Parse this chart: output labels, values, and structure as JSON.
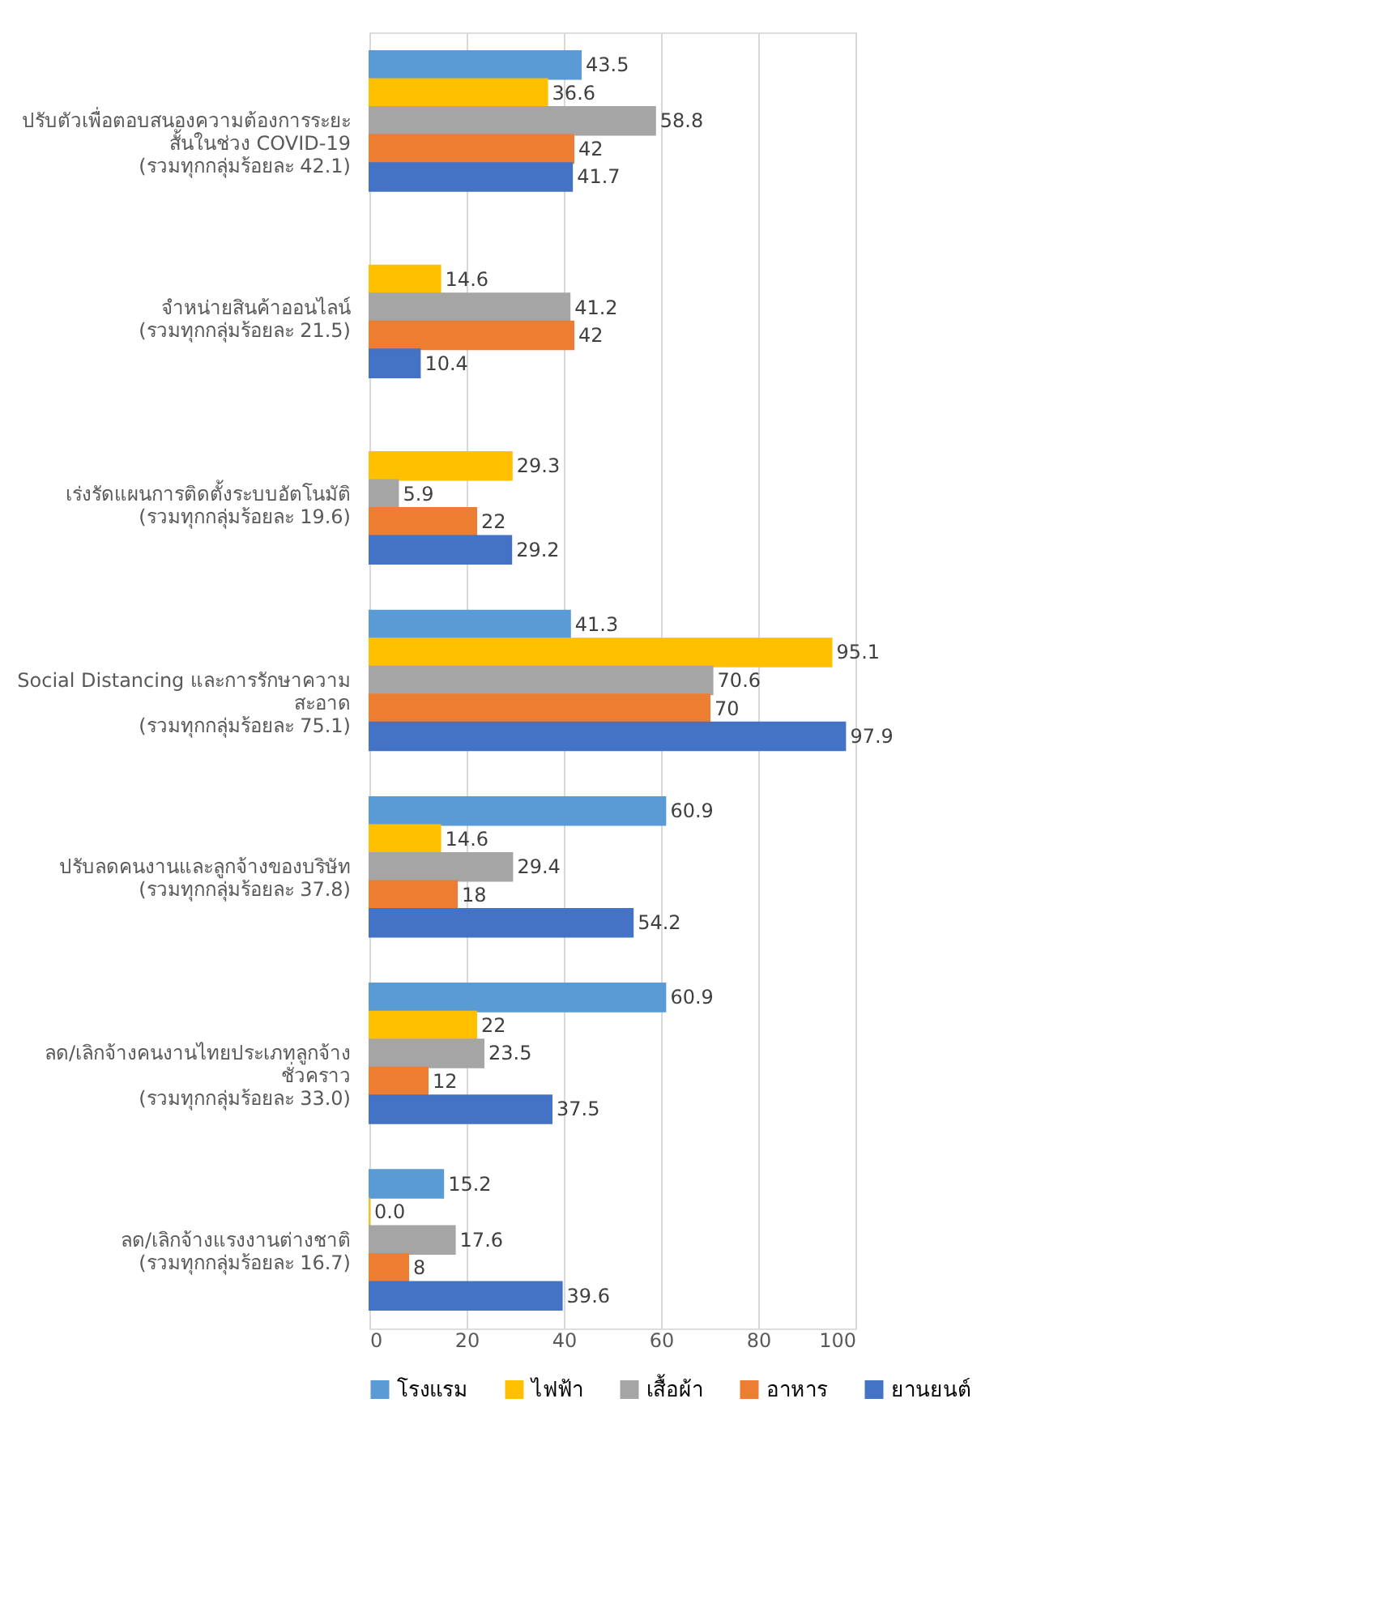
{
  "chart_data": {
    "type": "bar",
    "orientation": "horizontal",
    "categories": [
      "ปรับตัวเพื่อตอบสนองความต้องการระยะ\nสั้นในช่วง COVID-19\n(รวมทุกกลุ่มร้อยละ 42.1)",
      "จำหน่ายสินค้าออนไลน์\n(รวมทุกกลุ่มร้อยละ 21.5)",
      "เร่งรัดแผนการติดตั้งระบบอัตโนมัติ\n(รวมทุกกลุ่มร้อยละ 19.6)",
      "Social Distancing และการรักษาความ\nสะอาด\n(รวมทุกกลุ่มร้อยละ 75.1)",
      "ปรับลดคนงานและลูกจ้างของบริษัท\n(รวมทุกกลุ่มร้อยละ 37.8)",
      "ลด/เลิกจ้างคนงานไทยประเภทลูกจ้าง\nชั่วคราว\n(รวมทุกกลุ่มร้อยละ 33.0)",
      "ลด/เลิกจ้างแรงงานต่างชาติ\n(รวมทุกกลุ่มร้อยละ 16.7)"
    ],
    "series": [
      {
        "name": "โรงแรม",
        "color": "#5b9bd5",
        "values": [
          43.5,
          null,
          null,
          41.3,
          60.9,
          60.9,
          15.2
        ],
        "value_labels": [
          "43.5",
          null,
          null,
          "41.3",
          "60.9",
          "60.9",
          "15.2"
        ]
      },
      {
        "name": "ไฟฟ้า",
        "color": "#ffc000",
        "values": [
          36.6,
          14.6,
          29.3,
          95.1,
          14.6,
          22,
          0.0
        ],
        "value_labels": [
          "36.6",
          "14.6",
          "29.3",
          "95.1",
          "14.6",
          "22",
          "0.0"
        ]
      },
      {
        "name": "เสื้อผ้า",
        "color": "#a5a5a5",
        "values": [
          58.8,
          41.2,
          5.9,
          70.6,
          29.4,
          23.5,
          17.6
        ],
        "value_labels": [
          "58.8",
          "41.2",
          "5.9",
          "70.6",
          "29.4",
          "23.5",
          "17.6"
        ]
      },
      {
        "name": "อาหาร",
        "color": "#ed7d31",
        "values": [
          42,
          42,
          22,
          70,
          18,
          12,
          8
        ],
        "value_labels": [
          "42",
          "42",
          "22",
          "70",
          "18",
          "12",
          "8"
        ]
      },
      {
        "name": "ยานยนต์",
        "color": "#4472c4",
        "values": [
          41.7,
          10.4,
          29.2,
          97.9,
          54.2,
          37.5,
          39.6
        ],
        "value_labels": [
          "41.7",
          "10.4",
          "29.2",
          "97.9",
          "54.2",
          "37.5",
          "39.6"
        ]
      }
    ],
    "xlim": [
      0,
      100
    ],
    "xticks": [
      0,
      20,
      40,
      60,
      80,
      100
    ],
    "grid": "x",
    "legend": "bottom"
  }
}
